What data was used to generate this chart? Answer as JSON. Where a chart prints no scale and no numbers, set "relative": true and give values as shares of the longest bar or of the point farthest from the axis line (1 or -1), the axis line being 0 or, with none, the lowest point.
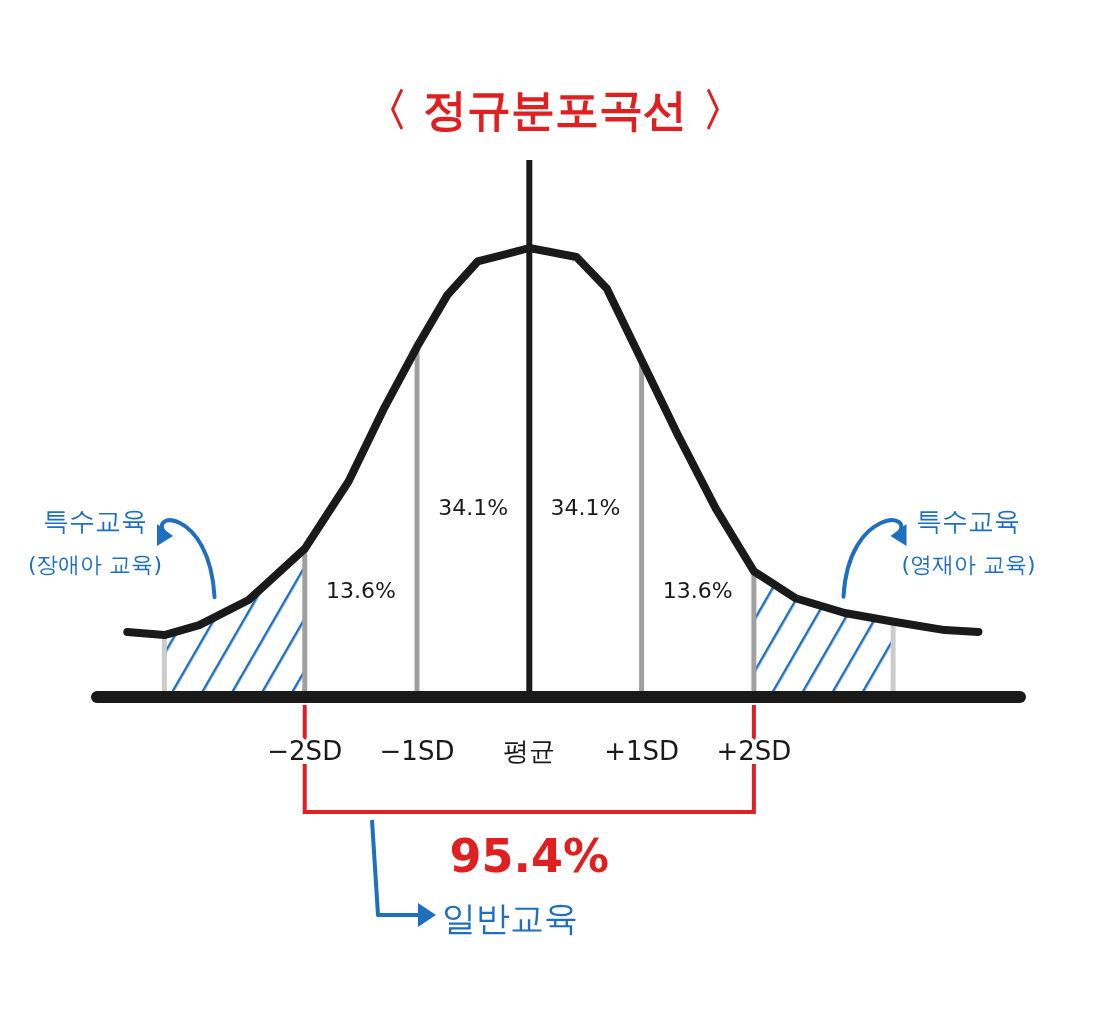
{
  "chart_data": {
    "type": "line",
    "title": "〈 정규분포곡선 〉",
    "relative": true,
    "x": [
      -3.58,
      -3.25,
      -2.94,
      -2.5,
      -2,
      -1.61,
      -1.3,
      -1,
      -0.73,
      -0.46,
      0,
      0.42,
      0.69,
      1,
      1.31,
      1.66,
      2,
      2.37,
      2.81,
      3.26,
      3.7,
      4
    ],
    "xlim": [
      -3.85,
      4.37
    ],
    "xticks": [
      {
        "value": -2,
        "label": "−2SD"
      },
      {
        "value": -1,
        "label": "−1SD"
      },
      {
        "value": 0,
        "label": "평균"
      },
      {
        "value": 1,
        "label": "+1SD"
      },
      {
        "value": 2,
        "label": "+2SD"
      }
    ],
    "series": [
      {
        "color": "#1a1a1a",
        "values": [
          0.145,
          0.138,
          0.16,
          0.216,
          0.33,
          0.48,
          0.64,
          0.78,
          0.895,
          0.97,
          1,
          0.98,
          0.91,
          0.75,
          0.59,
          0.42,
          0.28,
          0.22,
          0.187,
          0.167,
          0.149,
          0.145
        ]
      }
    ],
    "ref_lines": [
      {
        "axis": "x",
        "value": -3.25,
        "color": "#cccccc"
      },
      {
        "axis": "x",
        "value": 3.24,
        "color": "#cccccc"
      },
      {
        "axis": "x",
        "value": -2,
        "color": "#a0a0a0"
      },
      {
        "axis": "x",
        "value": -1,
        "color": "#a0a0a0"
      },
      {
        "axis": "x",
        "value": 1,
        "color": "#a0a0a0"
      },
      {
        "axis": "x",
        "value": 2,
        "color": "#a0a0a0"
      }
    ],
    "bands": [
      {
        "axis": "x",
        "from": -3.25,
        "to": -2,
        "label": "특수교육 (장애아 교육)",
        "color": "#1f6fc0"
      },
      {
        "axis": "x",
        "from": 2,
        "to": 3.24,
        "label": "특수교육 (영재아 교육)",
        "color": "#1f6fc0"
      }
    ],
    "annotations": [
      "34.1%",
      "34.1%",
      "13.6%",
      "13.6%",
      "95.4%",
      "일반교육"
    ],
    "marker": "none",
    "line_style": "solid"
  }
}
